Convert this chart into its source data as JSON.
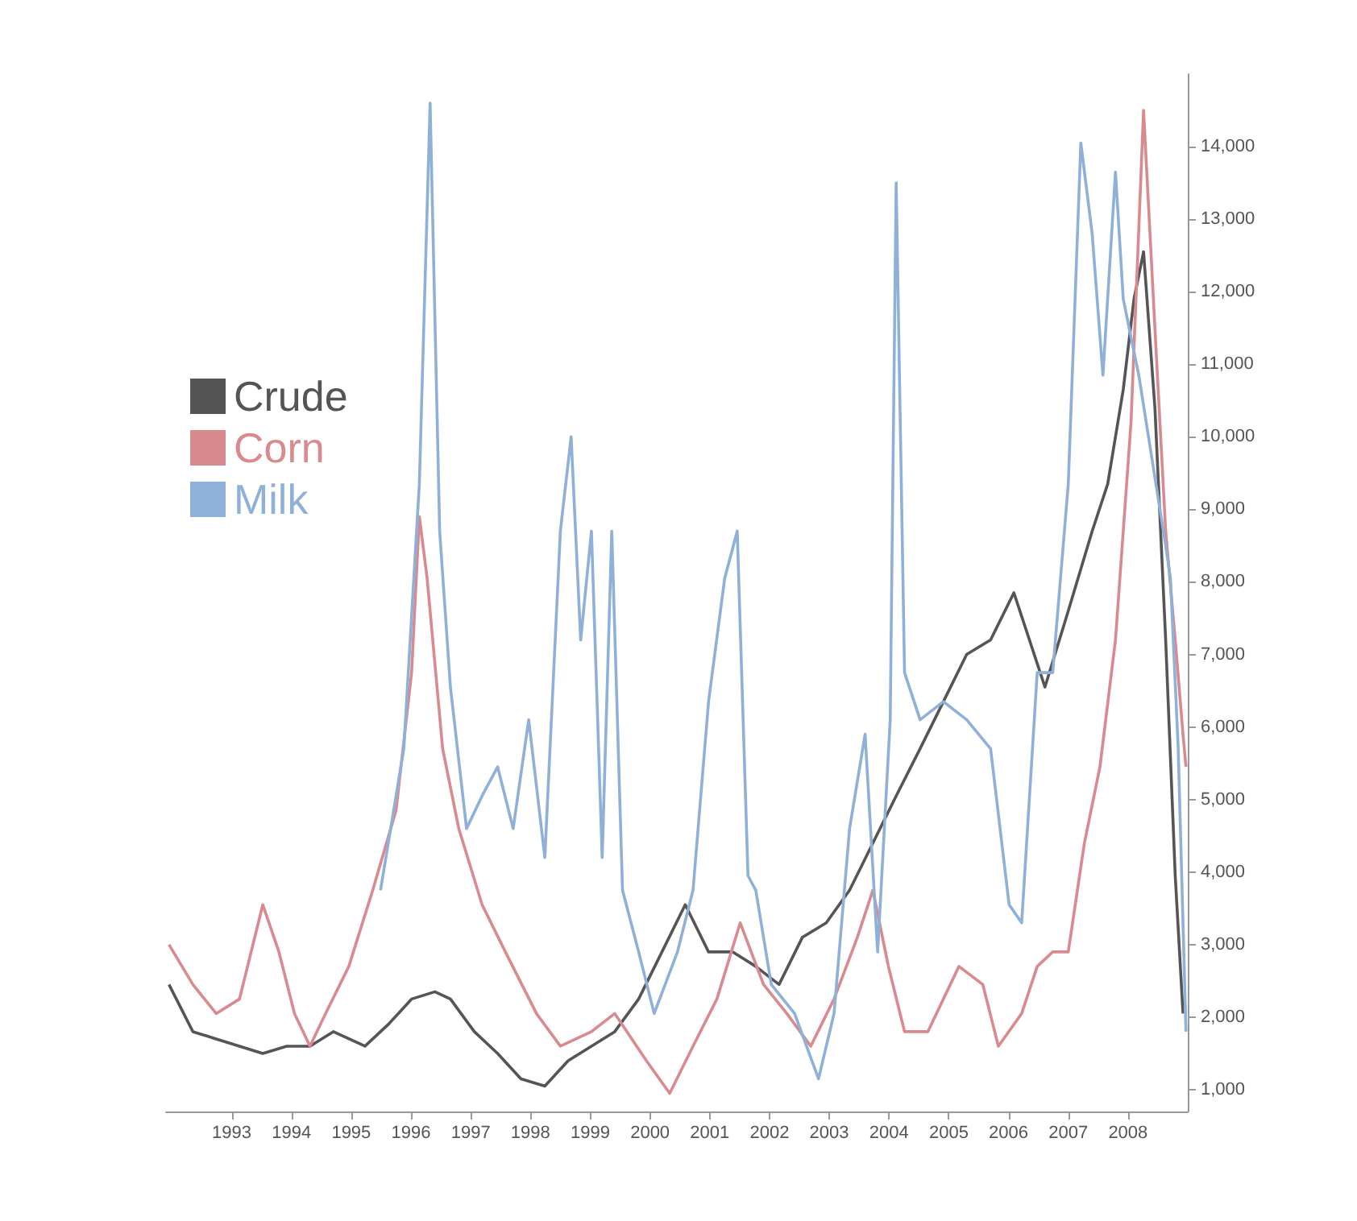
{
  "chart_data": {
    "type": "line",
    "xlim": [
      1991.9,
      2009
    ],
    "xticks": [
      1993,
      1994,
      1995,
      1996,
      1997,
      1998,
      1999,
      2000,
      2001,
      2002,
      2003,
      2004,
      2005,
      2006,
      2007,
      2008
    ],
    "ylim": [
      700,
      15000
    ],
    "yticks": [
      {
        "value": 1000,
        "label": "1,000"
      },
      {
        "value": 2000,
        "label": "2,000"
      },
      {
        "value": 3000,
        "label": "3,000"
      },
      {
        "value": 4000,
        "label": "4,000"
      },
      {
        "value": 5000,
        "label": "5,000"
      },
      {
        "value": 6000,
        "label": "6,000"
      },
      {
        "value": 7000,
        "label": "7,000"
      },
      {
        "value": 8000,
        "label": "8,000"
      },
      {
        "value": 9000,
        "label": "9,000"
      },
      {
        "value": 10000,
        "label": "10,000"
      },
      {
        "value": 11000,
        "label": "11,000"
      },
      {
        "value": 12000,
        "label": "12,000"
      },
      {
        "value": 13000,
        "label": "13,000"
      },
      {
        "value": 14000,
        "label": "14,000"
      }
    ],
    "grid": false,
    "legend": "top left",
    "marker": "none",
    "line_style": "solid",
    "series": [
      {
        "name": "Crude",
        "color": "#555555",
        "x": [
          1991.95,
          1992.35,
          1992.74,
          1993.13,
          1993.52,
          1993.92,
          1994.31,
          1994.7,
          1995.23,
          1995.62,
          1996.01,
          1996.4,
          1996.66,
          1997.06,
          1997.45,
          1997.84,
          1998.24,
          1998.63,
          1999.02,
          1999.41,
          1999.81,
          2000.2,
          2000.59,
          2000.98,
          2001.38,
          2001.77,
          2002.16,
          2002.55,
          2002.95,
          2003.34,
          2003.73,
          2004.12,
          2004.52,
          2004.91,
          2005.3,
          2005.7,
          2006.09,
          2006.35,
          2006.61,
          2007.0,
          2007.4,
          2007.66,
          2007.92,
          2008.1,
          2008.26,
          2008.45,
          2008.63,
          2008.79,
          2008.92
        ],
        "values": [
          2450,
          1800,
          1700,
          1600,
          1500,
          1600,
          1600,
          1800,
          1600,
          1900,
          2250,
          2350,
          2250,
          1800,
          1500,
          1150,
          1050,
          1400,
          1600,
          1800,
          2250,
          2900,
          3550,
          2900,
          2900,
          2700,
          2450,
          3100,
          3300,
          3750,
          4400,
          5050,
          5700,
          6350,
          7000,
          7200,
          7850,
          7200,
          6550,
          7600,
          8700,
          9350,
          10650,
          11900,
          12550,
          10400,
          7200,
          3950,
          2050
        ]
      },
      {
        "name": "Corn",
        "color": "#d98a8f",
        "x": [
          1991.95,
          1992.35,
          1992.74,
          1993.13,
          1993.52,
          1993.79,
          1994.05,
          1994.31,
          1994.57,
          1994.96,
          1995.36,
          1995.75,
          1996.01,
          1996.14,
          1996.27,
          1996.53,
          1996.8,
          1997.19,
          1997.58,
          1998.1,
          1998.5,
          1999.02,
          1999.41,
          1999.94,
          2000.33,
          2000.72,
          2001.12,
          2001.51,
          2001.9,
          2002.29,
          2002.69,
          2003.08,
          2003.47,
          2003.73,
          2003.99,
          2004.26,
          2004.65,
          2005.17,
          2005.57,
          2005.83,
          2006.22,
          2006.48,
          2006.74,
          2007.0,
          2007.27,
          2007.53,
          2007.79,
          2008.05,
          2008.26,
          2008.45,
          2008.63,
          2008.79,
          2008.92,
          2008.97
        ],
        "values": [
          3000,
          2450,
          2050,
          2250,
          3550,
          2900,
          2050,
          1600,
          2050,
          2700,
          3750,
          4850,
          6750,
          8900,
          8050,
          5700,
          4600,
          3550,
          2900,
          2050,
          1600,
          1800,
          2050,
          1400,
          950,
          1600,
          2250,
          3300,
          2450,
          2050,
          1600,
          2250,
          3100,
          3750,
          2700,
          1800,
          1800,
          2700,
          2450,
          1600,
          2050,
          2700,
          2900,
          2900,
          4400,
          5450,
          7200,
          10200,
          14500,
          11500,
          8700,
          7200,
          5900,
          5450
        ]
      },
      {
        "name": "Milk",
        "color": "#8fb0d8",
        "x": [
          1995.49,
          1995.88,
          1996.14,
          1996.32,
          1996.48,
          1996.66,
          1996.93,
          1997.19,
          1997.45,
          1997.71,
          1997.97,
          1998.24,
          1998.5,
          1998.68,
          1998.84,
          1999.02,
          1999.2,
          1999.36,
          1999.54,
          1999.81,
          2000.07,
          2000.46,
          2000.72,
          2000.98,
          2001.25,
          2001.46,
          2001.64,
          2001.77,
          2002.03,
          2002.42,
          2002.82,
          2003.08,
          2003.34,
          2003.6,
          2003.81,
          2004.02,
          2004.12,
          2004.26,
          2004.52,
          2004.91,
          2005.3,
          2005.7,
          2006.01,
          2006.22,
          2006.48,
          2006.74,
          2007.0,
          2007.21,
          2007.4,
          2007.58,
          2007.79,
          2007.92,
          2008.18,
          2008.63,
          2008.71,
          2008.84,
          2008.97
        ],
        "values": [
          3750,
          5700,
          9350,
          14600,
          8700,
          6550,
          4600,
          5050,
          5450,
          4600,
          6100,
          4200,
          8700,
          10000,
          7200,
          8700,
          4200,
          8700,
          3750,
          2900,
          2050,
          2900,
          3750,
          6350,
          8050,
          8700,
          3950,
          3750,
          2450,
          2050,
          1150,
          2050,
          4600,
          5900,
          2900,
          6100,
          13500,
          6750,
          6100,
          6350,
          6100,
          5700,
          3550,
          3300,
          6750,
          6750,
          9350,
          14050,
          12800,
          10850,
          13650,
          11900,
          10850,
          8500,
          8050,
          5700,
          1800
        ]
      }
    ]
  }
}
